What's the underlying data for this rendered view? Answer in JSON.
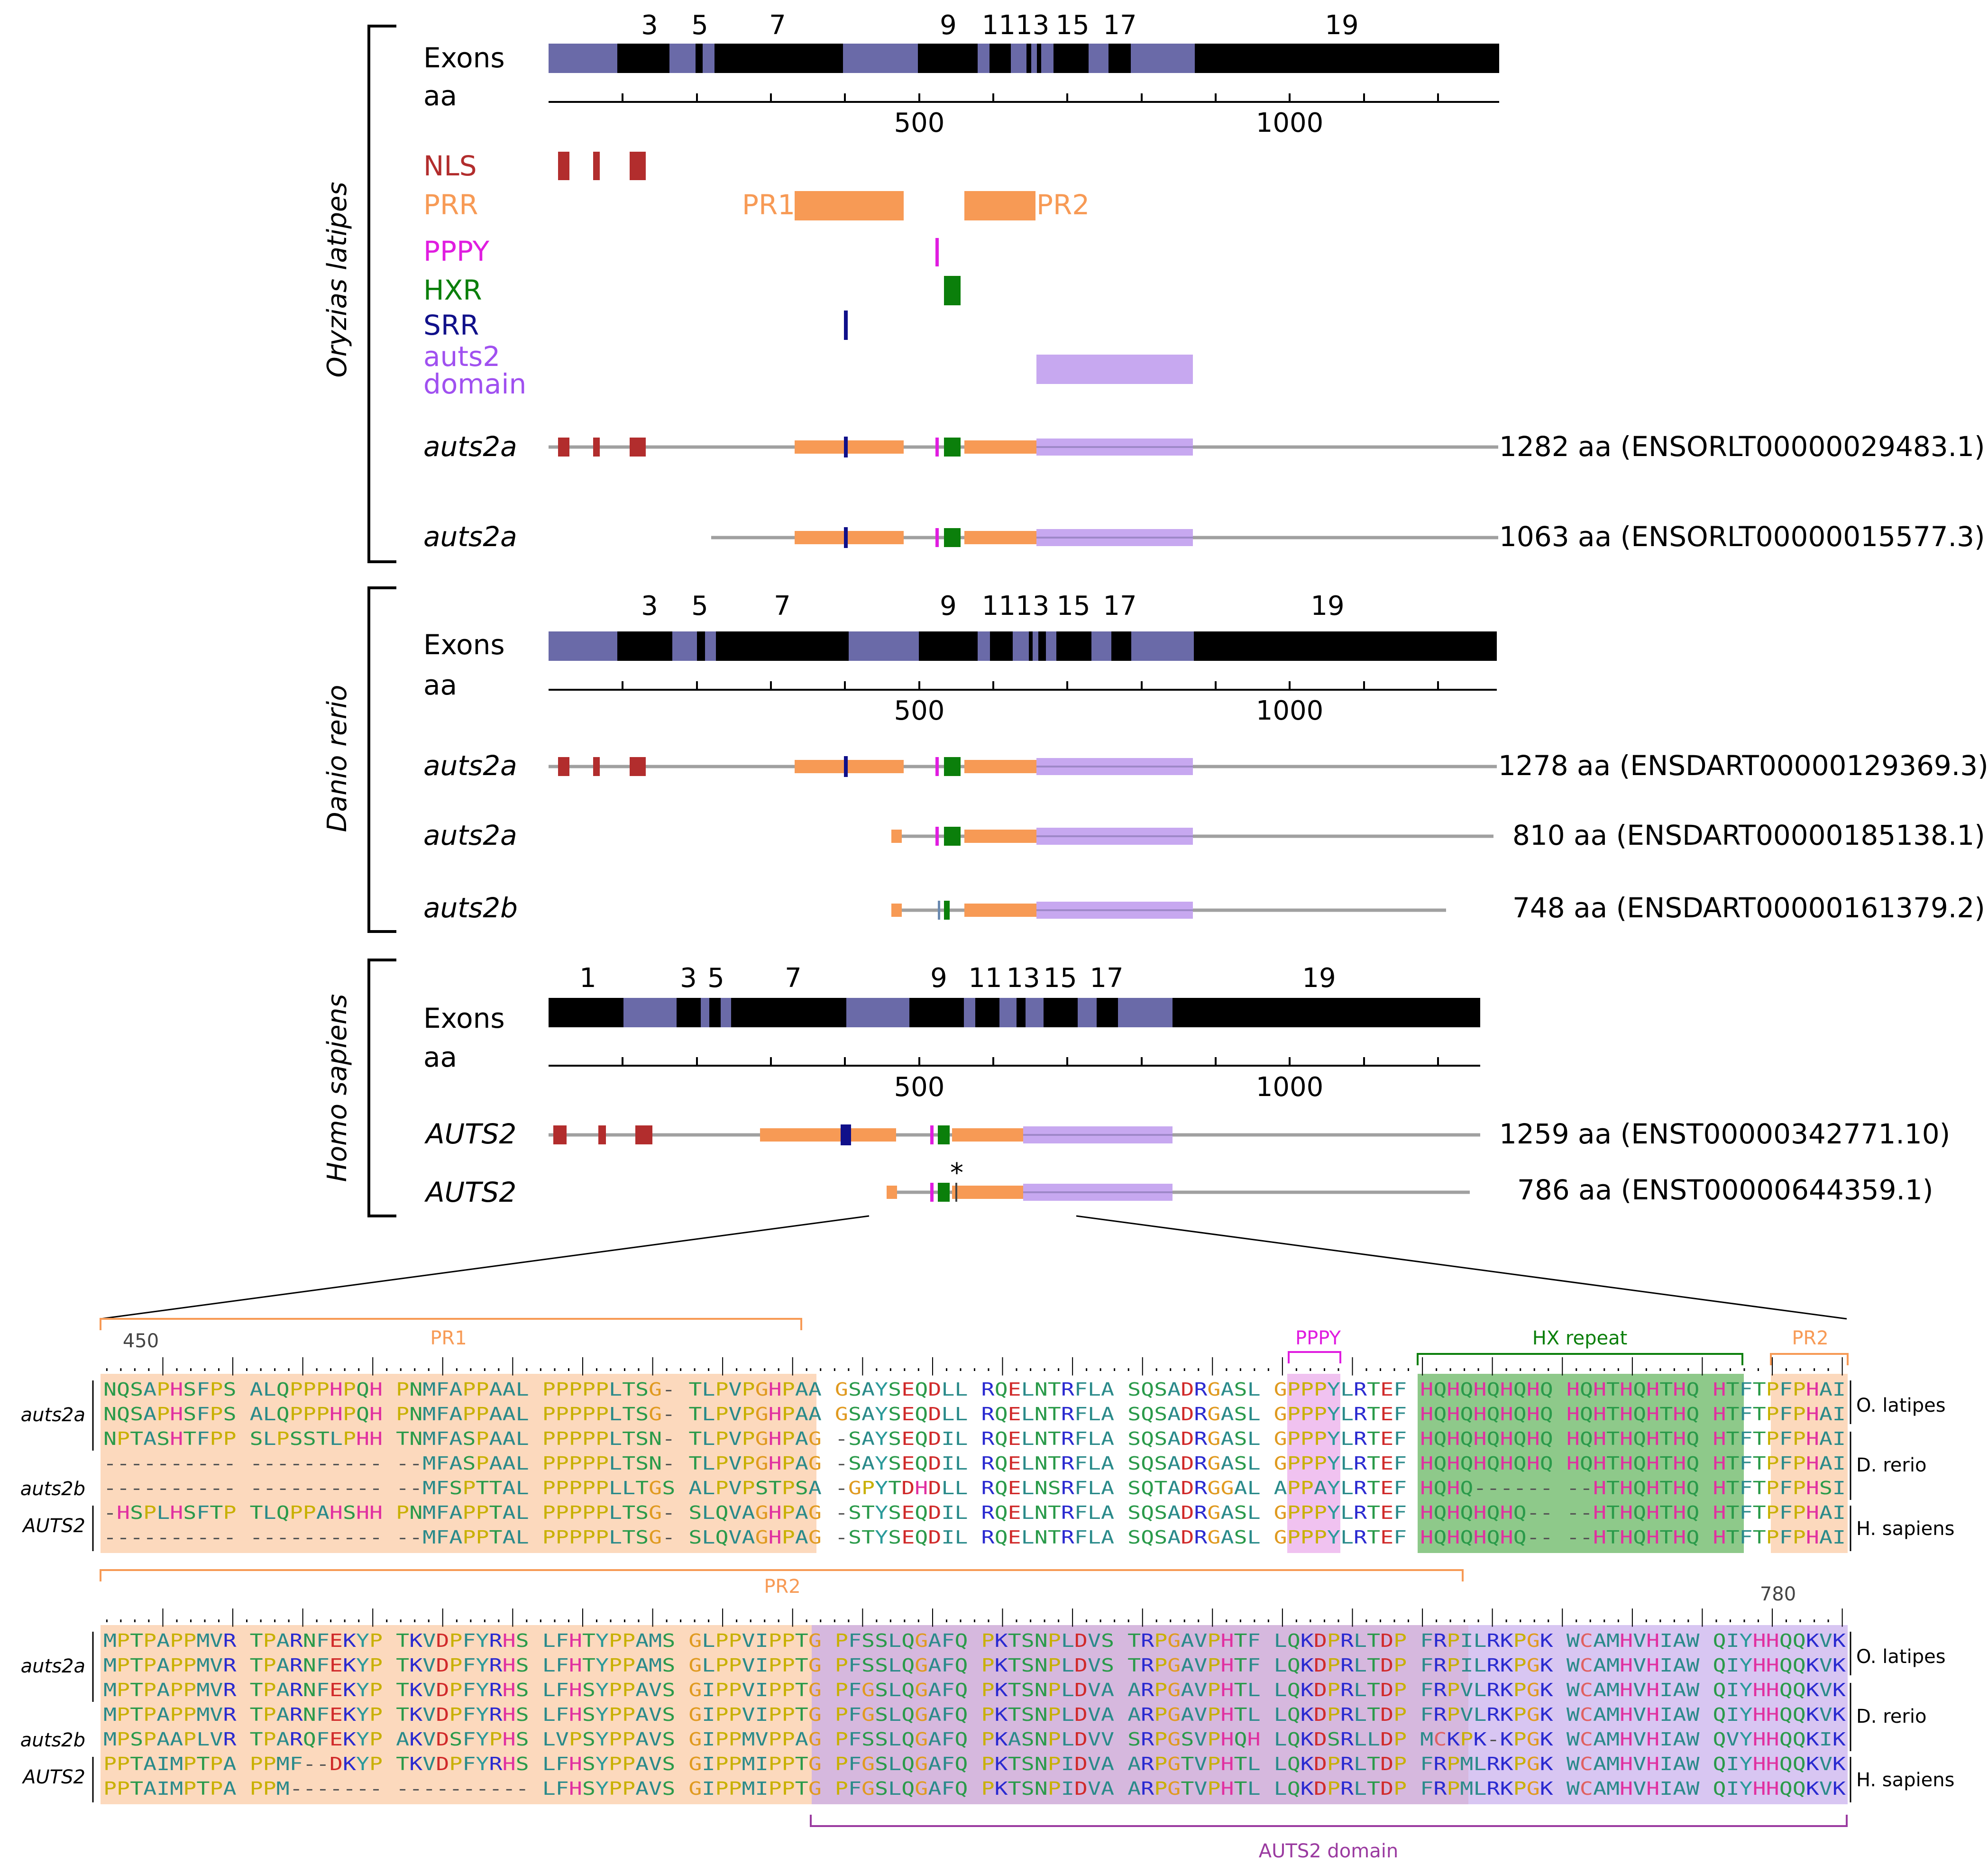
{
  "colors": {
    "exon_dark": "#000000",
    "exon_light": "#6a6aa8",
    "nls": "#b22d2d",
    "prr": "#f79a55",
    "pppy": "#e01de0",
    "hxr": "#0b7f0b",
    "srr": "#10108a",
    "domain": "#c7a8f0",
    "domain_text": "#a050f0",
    "line": "#a0a0a0",
    "pr_bg": "#fcd9bd",
    "dom_bg": "#d6b8de",
    "hx_bg": "#8ec98a",
    "pppy_bg": "#f0c2f0",
    "dom_bracket": "#9a3aa0"
  },
  "species": {
    "medaka": "Oryzias latipes",
    "zebrafish": "Danio rerio",
    "human": "Homo sapiens"
  },
  "exons_label": "Exons",
  "aa_label": "aa",
  "axis": {
    "t500": "500",
    "t1000": "1000"
  },
  "exon_numbers": {
    "medaka": [
      "3",
      "5",
      "7",
      "9",
      "1113",
      "15",
      "17",
      "19"
    ],
    "zebrafish": [
      "3",
      "5",
      "7",
      "9",
      "1113",
      "15",
      "17",
      "19"
    ],
    "human": [
      "1",
      "3",
      "5",
      "7",
      "9",
      "11",
      "13",
      "15",
      "17",
      "19"
    ]
  },
  "legend": {
    "nls": "NLS",
    "prr": "PRR",
    "pr1": "PR1",
    "pr2": "PR2",
    "pppy": "PPPY",
    "hxr": "HXR",
    "srr": "SRR",
    "domain_l1": "auts2",
    "domain_l2": "domain"
  },
  "transcripts": {
    "medaka": [
      {
        "name": "auts2a",
        "info": "1282 aa (ENSORLT00000029483.1)"
      },
      {
        "name": "auts2a",
        "info": "1063 aa (ENSORLT00000015577.3)"
      }
    ],
    "zebrafish": [
      {
        "name": "auts2a",
        "info": "1278 aa (ENSDART00000129369.3)"
      },
      {
        "name": "auts2a",
        "info": "810 aa (ENSDART00000185138.1)"
      },
      {
        "name": "auts2b",
        "info": "748 aa (ENSDART00000161379.2)"
      }
    ],
    "human": [
      {
        "name": "AUTS2",
        "info": "1259 aa (ENST00000342771.10)"
      },
      {
        "name": "AUTS2",
        "info": "786 aa (ENST00000644359.1)"
      }
    ]
  },
  "asterisk": "*",
  "alignment": {
    "block1": {
      "start": "450",
      "pr1": "PR1",
      "pppy": "PPPY",
      "hx": "HX repeat",
      "pr2": "PR2",
      "ruler": ". . . . | . . . . | . . . . | . . . . | . . . . | . . . . | . . . . | . . . . | . . . . | . . . . | . . . . | . . . . | . . . . | . . . . | . . . . | . . . . | . . . . | . . . . | . . . . | . . . . | . . . . | . . . . | . . . . | . . . . | . . . . |",
      "rows": [
        "NQSAPHSFPS ALQPPPHPQH PNMFAPPAAL PPPPPLTSG- TLPVPGHPAA GSAYSEQDLL RQELNTRFLA SQSADRGASL GPPPYLRTEF HQHQHQHQHQ HQHTHQHTHQ HTFTPFPHAI",
        "NQSAPHSFPS ALQPPPHPQH PNMFAPPAAL PPPPPLTSG- TLPVPGHPAA GSAYSEQDLL RQELNTRFLA SQSADRGASL GPPPYLRTEF HQHQHQHQHQ HQHTHQHTHQ HTFTPFPHAI",
        "NPTASHTFPP SLPSSTLPHH TNMFASPAAL PPPPPLTSN- TLPVPGHPAG -SAYSEQDIL RQELNTRFLA SQSADRGASL GPPPYLRTEF HQHQHQHQHQ HQHTHQHTHQ HTFTPFPHAI",
        "---------- ---------- --MFASPAAL PPPPPLTSN- TLPVPGHPAG -SAYSEQDIL RQELNTRFLA SQSADRGASL GPPPYLRTEF HQHQHQHQHQ HQHTHQHTHQ HTFTPFPHAI",
        "---------- ---------- --MFSPTTAL PPPPPLLTGS ALPVPSTPSA -GPYTDHDLL RQELNSRFLA SQTADRGGAL APPAYLRTEF HQHQ------ --HTHQHTHQ HTFTPFPHSI",
        "-HSPLHSFTP TLQPPAHSHH PNMFAPPTAL PPPPPLTSG- SLQVAGHPAG -STYSEQDIL RQELNTRFLA SQSADRGASL GPPPYLRTEF HQHQHQHQ-- --HTHQHTHQ HTFTPFPHAI",
        "---------- ---------- --MFAPPTAL PPPPPLTSG- SLQVAGHPAG -STYSEQDIL RQELNTRFLA SQSADRGASL GPPPYLRTEF HQHQHQHQ-- --HTHQHTHQ HTFTPFPHAI"
      ]
    },
    "block2": {
      "pr2": "PR2",
      "end": "780",
      "domain": "AUTS2 domain",
      "ruler": ". . . . | . . . . | . . . . | . . . . | . . . . | . . . . | . . . . | . . . . | . . . . | . . . . | . . . . | . . . . | . . . . | . . . . | . . . . | . . . . | . . . . | . . . . | . . . . | . . . . | . . . . | . . . . | . . . . | . . . . | . . . . |",
      "rows": [
        "MPTPAPPMVR TPARNFEKYP TKVDPFYRHS LFHTYPPAMS GLPPVIPPTG PFSSLQGAFQ PKTSNPLDVS TRPGAVPHTF LQKDPRLTDP FRPILRKPGK WCAMHVHIAW QIYHHQQKVK",
        "MPTPAPPMVR TPARNFEKYP TKVDPFYRHS LFHTYPPAMS GLPPVIPPTG PFSSLQGAFQ PKTSNPLDVS TRPGAVPHTF LQKDPRLTDP FRPILRKPGK WCAMHVHIAW QIYHHQQKVK",
        "MPTPAPPMVR TPARNFEKYP TKVDPFYRHS LFHSYPPAVS GIPPVIPPTG PFGSLQGAFQ PKTSNPLDVA ARPGAVPHTL LQKDPRLTDP FRPVLRKPGK WCAMHVHIAW QIYHHQQKVK",
        "MPTPAPPMVR TPARNFEKYP TKVDPFYRHS LFHSYPPAVS GIPPVIPPTG PFGSLQGAFQ PKTSNPLDVA ARPGAVPHTL LQKDPRLTDP FRPVLRKPGK WCAMHVHIAW QIYHHQQKVK",
        "MPSPAAPLVR TPARQFEKYP AKVDSFYPHS LVPSYPPAVS GIPPMVPPAG PFSSLQGAFQ PKASNPLDVV SRPGSVPHQH LQKDSRLLDP MCKPK-KPGK WCAMHVHIAW QVYHHQQKIK",
        "PPTAIMPTPA PPMF--DKYP TKVDPFYRHS LFHSYPPAVS GIPPMIPPTG PFGSLQGAFQ PKTSNPIDVA ARPGTVPHTL LQKDPRLTDP FRPMLRKPGK WCAMHVHIAW QIYHHQQKVK",
        "PPTAIMPTPA PPM------- ---------- LFHSYPPAVS GIPPMIPPTG PFGSLQGAFQ PKTSNPIDVA ARPGTVPHTL LQKDPRLTDP FRPMLRKPGK WCAMHVHIAW QIYHHQQKVK"
      ]
    },
    "row_labels": {
      "auts2a": "auts2a",
      "auts2b": "auts2b",
      "AUTS2": "AUTS2"
    },
    "species_short": {
      "medaka": "O. latipes",
      "zebrafish": "D. rerio",
      "human": "H. sapiens"
    }
  }
}
